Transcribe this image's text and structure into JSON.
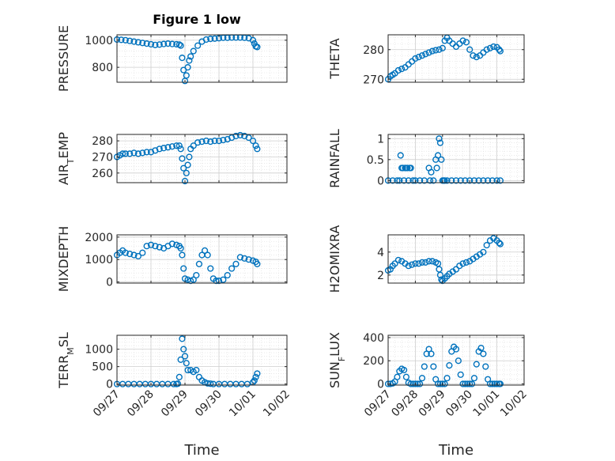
{
  "figure": {
    "marker_color": "#0072BD",
    "axes_color": "#262626",
    "grid": true
  },
  "chart_data": [
    {
      "type": "scatter",
      "title": "Figure 1 low",
      "ylabel": "PRESSURE",
      "xlim": [
        "09/27",
        "10/02"
      ],
      "ylim": [
        690,
        1040
      ],
      "yticks": [
        800,
        1000
      ],
      "xtick_labels_visible": false,
      "x": [
        "09/27 00:00",
        "09/27 03:00",
        "09/27 06:00",
        "09/27 09:00",
        "09/27 12:00",
        "09/27 15:00",
        "09/27 18:00",
        "09/27 21:00",
        "09/28 00:00",
        "09/28 03:00",
        "09/28 06:00",
        "09/28 09:00",
        "09/28 12:00",
        "09/28 15:00",
        "09/28 18:00",
        "09/28 20:00",
        "09/28 21:00",
        "09/28 22:00",
        "09/28 23:00",
        "09/29 00:00",
        "09/29 01:00",
        "09/29 02:00",
        "09/29 03:00",
        "09/29 04:00",
        "09/29 06:00",
        "09/29 09:00",
        "09/29 12:00",
        "09/29 15:00",
        "09/29 18:00",
        "09/29 21:00",
        "09/30 00:00",
        "09/30 03:00",
        "09/30 06:00",
        "09/30 09:00",
        "09/30 12:00",
        "09/30 15:00",
        "09/30 18:00",
        "09/30 21:00",
        "10/01 00:00",
        "10/01 01:00",
        "10/01 02:00",
        "10/01 03:00"
      ],
      "y": [
        1005,
        1003,
        1000,
        995,
        990,
        985,
        980,
        975,
        970,
        965,
        968,
        972,
        975,
        972,
        970,
        968,
        960,
        870,
        780,
        700,
        740,
        800,
        850,
        880,
        920,
        960,
        990,
        1005,
        1010,
        1012,
        1015,
        1018,
        1018,
        1020,
        1020,
        1020,
        1018,
        1015,
        1000,
        975,
        955,
        950
      ]
    },
    {
      "type": "scatter",
      "ylabel": "THETA",
      "xlim": [
        "09/27",
        "10/02"
      ],
      "ylim": [
        269,
        285
      ],
      "yticks": [
        270,
        280
      ],
      "xtick_labels_visible": false,
      "x": [
        "09/27 00:00",
        "09/27 02:00",
        "09/27 04:00",
        "09/27 06:00",
        "09/27 09:00",
        "09/27 12:00",
        "09/27 15:00",
        "09/27 18:00",
        "09/27 21:00",
        "09/28 00:00",
        "09/28 03:00",
        "09/28 06:00",
        "09/28 09:00",
        "09/28 12:00",
        "09/28 15:00",
        "09/28 18:00",
        "09/28 21:00",
        "09/29 00:00",
        "09/29 02:00",
        "09/29 04:00",
        "09/29 06:00",
        "09/29 09:00",
        "09/29 12:00",
        "09/29 15:00",
        "09/29 18:00",
        "09/29 21:00",
        "09/30 00:00",
        "09/30 03:00",
        "09/30 06:00",
        "09/30 09:00",
        "09/30 12:00",
        "09/30 15:00",
        "09/30 18:00",
        "09/30 21:00",
        "10/01 00:00",
        "10/01 02:00",
        "10/01 03:00"
      ],
      "y": [
        270,
        271,
        271.5,
        272,
        273,
        273.5,
        274,
        275,
        276,
        277,
        277.5,
        278,
        278.5,
        279,
        279.5,
        279.8,
        280,
        280.5,
        283,
        284,
        283,
        282,
        281,
        282,
        283,
        282.5,
        280,
        278,
        277.5,
        278,
        279,
        280,
        280.5,
        281,
        280.8,
        280,
        279.5
      ]
    },
    {
      "type": "scatter",
      "ylabel": "AIR_TEMP",
      "ylabel_parts": [
        "AIR",
        "T",
        "EMP"
      ],
      "xlim": [
        "09/27",
        "10/02"
      ],
      "ylim": [
        254,
        284
      ],
      "yticks": [
        260,
        270,
        280
      ],
      "xtick_labels_visible": false,
      "x": [
        "09/27 00:00",
        "09/27 02:00",
        "09/27 04:00",
        "09/27 06:00",
        "09/27 09:00",
        "09/27 12:00",
        "09/27 15:00",
        "09/27 18:00",
        "09/27 21:00",
        "09/28 00:00",
        "09/28 03:00",
        "09/28 06:00",
        "09/28 09:00",
        "09/28 12:00",
        "09/28 15:00",
        "09/28 18:00",
        "09/28 20:00",
        "09/28 21:00",
        "09/28 22:00",
        "09/28 23:00",
        "09/29 00:00",
        "09/29 01:00",
        "09/29 02:00",
        "09/29 03:00",
        "09/29 04:00",
        "09/29 06:00",
        "09/29 09:00",
        "09/29 12:00",
        "09/29 15:00",
        "09/29 18:00",
        "09/29 21:00",
        "09/30 00:00",
        "09/30 03:00",
        "09/30 06:00",
        "09/30 09:00",
        "09/30 12:00",
        "09/30 15:00",
        "09/30 18:00",
        "09/30 21:00",
        "10/01 00:00",
        "10/01 02:00",
        "10/01 03:00"
      ],
      "y": [
        270,
        271,
        272,
        272,
        272,
        272.5,
        272,
        272.5,
        273,
        273,
        274,
        275,
        275.5,
        276,
        276.5,
        277,
        277,
        275,
        269,
        263,
        255,
        260,
        265,
        270,
        275,
        277,
        279,
        279.5,
        280,
        279.5,
        280,
        280,
        280.5,
        281,
        282,
        283,
        283.5,
        283,
        282,
        280,
        277,
        275
      ]
    },
    {
      "type": "scatter",
      "ylabel": "RAINFALL",
      "xlim": [
        "09/27",
        "10/02"
      ],
      "ylim": [
        -0.05,
        1.1
      ],
      "yticks": [
        0,
        0.5,
        1
      ],
      "ytick_labels": [
        "0",
        "0.5",
        "1"
      ],
      "xtick_labels_visible": false,
      "x": [
        "09/27 00:00",
        "09/27 04:00",
        "09/27 08:00",
        "09/27 10:00",
        "09/27 11:00",
        "09/27 12:00",
        "09/27 13:00",
        "09/27 14:00",
        "09/27 15:00",
        "09/27 16:00",
        "09/27 17:00",
        "09/27 18:00",
        "09/27 19:00",
        "09/27 20:00",
        "09/27 22:00",
        "09/28 00:00",
        "09/28 04:00",
        "09/28 08:00",
        "09/28 12:00",
        "09/28 13:00",
        "09/28 14:00",
        "09/28 16:00",
        "09/28 18:00",
        "09/28 19:00",
        "09/28 20:00",
        "09/28 21:00",
        "09/28 22:00",
        "09/28 23:00",
        "09/29 00:00",
        "09/29 01:00",
        "09/29 02:00",
        "09/29 04:00",
        "09/29 08:00",
        "09/29 12:00",
        "09/29 16:00",
        "09/29 20:00",
        "09/30 00:00",
        "09/30 04:00",
        "09/30 08:00",
        "09/30 12:00",
        "09/30 16:00",
        "09/30 20:00",
        "10/01 00:00",
        "10/01 03:00"
      ],
      "y": [
        0,
        0,
        0,
        0,
        0.6,
        0.3,
        0.3,
        0,
        0.3,
        0.3,
        0.3,
        0,
        0.3,
        0.3,
        0,
        0,
        0,
        0,
        0.3,
        0,
        0.2,
        0,
        0.5,
        0.3,
        0.6,
        1,
        0.9,
        0.5,
        0,
        0,
        0,
        0,
        0,
        0,
        0,
        0,
        0,
        0,
        0,
        0,
        0,
        0,
        0,
        0
      ]
    },
    {
      "type": "scatter",
      "ylabel": "MIXDEPTH",
      "xlim": [
        "09/27",
        "10/02"
      ],
      "ylim": [
        -50,
        2100
      ],
      "yticks": [
        0,
        1000,
        2000
      ],
      "xtick_labels_visible": false,
      "x": [
        "09/27 00:00",
        "09/27 02:00",
        "09/27 04:00",
        "09/27 06:00",
        "09/27 09:00",
        "09/27 12:00",
        "09/27 15:00",
        "09/27 18:00",
        "09/27 21:00",
        "09/28 00:00",
        "09/28 03:00",
        "09/28 06:00",
        "09/28 09:00",
        "09/28 12:00",
        "09/28 15:00",
        "09/28 18:00",
        "09/28 20:00",
        "09/28 21:00",
        "09/28 22:00",
        "09/28 23:00",
        "09/29 00:00",
        "09/29 02:00",
        "09/29 04:00",
        "09/29 06:00",
        "09/29 08:00",
        "09/29 10:00",
        "09/29 12:00",
        "09/29 14:00",
        "09/29 16:00",
        "09/29 18:00",
        "09/29 20:00",
        "09/29 22:00",
        "09/30 00:00",
        "09/30 03:00",
        "09/30 06:00",
        "09/30 09:00",
        "09/30 12:00",
        "09/30 15:00",
        "09/30 18:00",
        "09/30 21:00",
        "10/01 00:00",
        "10/01 02:00",
        "10/01 03:00"
      ],
      "y": [
        1200,
        1300,
        1400,
        1300,
        1250,
        1200,
        1150,
        1300,
        1600,
        1650,
        1600,
        1550,
        1500,
        1600,
        1700,
        1650,
        1600,
        1500,
        1200,
        600,
        150,
        100,
        50,
        100,
        300,
        800,
        1200,
        1400,
        1200,
        600,
        150,
        50,
        50,
        100,
        300,
        600,
        800,
        1100,
        1050,
        1000,
        950,
        900,
        800
      ]
    },
    {
      "type": "scatter",
      "ylabel": "H2OMIXRA",
      "xlim": [
        "09/27",
        "10/02"
      ],
      "ylim": [
        1.3,
        5.5
      ],
      "yticks": [
        2,
        4
      ],
      "xtick_labels_visible": false,
      "x": [
        "09/27 00:00",
        "09/27 02:00",
        "09/27 04:00",
        "09/27 06:00",
        "09/27 09:00",
        "09/27 12:00",
        "09/27 15:00",
        "09/27 18:00",
        "09/27 21:00",
        "09/28 00:00",
        "09/28 03:00",
        "09/28 06:00",
        "09/28 09:00",
        "09/28 12:00",
        "09/28 15:00",
        "09/28 18:00",
        "09/28 20:00",
        "09/28 21:00",
        "09/28 22:00",
        "09/28 23:00",
        "09/29 00:00",
        "09/29 02:00",
        "09/29 04:00",
        "09/29 06:00",
        "09/29 09:00",
        "09/29 12:00",
        "09/29 15:00",
        "09/29 18:00",
        "09/29 21:00",
        "09/30 00:00",
        "09/30 03:00",
        "09/30 06:00",
        "09/30 09:00",
        "09/30 12:00",
        "09/30 15:00",
        "09/30 18:00",
        "09/30 21:00",
        "10/01 00:00",
        "10/01 02:00",
        "10/01 03:00"
      ],
      "y": [
        2.4,
        2.5,
        2.8,
        3.0,
        3.3,
        3.2,
        3.0,
        2.8,
        2.9,
        3.0,
        3.0,
        3.1,
        3.1,
        3.2,
        3.2,
        3.1,
        3.0,
        2.5,
        2.0,
        1.6,
        1.5,
        1.7,
        1.9,
        2.1,
        2.3,
        2.5,
        2.8,
        3.0,
        3.1,
        3.2,
        3.4,
        3.6,
        3.8,
        4.0,
        4.6,
        5.0,
        5.2,
        5.0,
        4.8,
        4.7
      ]
    },
    {
      "type": "scatter",
      "ylabel": "TERR_MSL",
      "ylabel_parts": [
        "TERR",
        "M",
        "SL"
      ],
      "xlabel": "Time",
      "xlim": [
        "09/27",
        "10/02"
      ],
      "ylim": [
        -30,
        1400
      ],
      "yticks": [
        0,
        500,
        1000
      ],
      "xtick_labels": [
        "09/27",
        "09/28",
        "09/29",
        "09/30",
        "10/01",
        "10/02"
      ],
      "x": [
        "09/27 00:00",
        "09/27 04:00",
        "09/27 08:00",
        "09/27 12:00",
        "09/27 16:00",
        "09/27 20:00",
        "09/28 00:00",
        "09/28 04:00",
        "09/28 08:00",
        "09/28 12:00",
        "09/28 16:00",
        "09/28 18:00",
        "09/28 19:00",
        "09/28 20:00",
        "09/28 21:00",
        "09/28 22:00",
        "09/28 23:00",
        "09/29 00:00",
        "09/29 01:00",
        "09/29 02:00",
        "09/29 04:00",
        "09/29 06:00",
        "09/29 08:00",
        "09/29 10:00",
        "09/29 12:00",
        "09/29 14:00",
        "09/29 16:00",
        "09/29 18:00",
        "09/29 20:00",
        "09/30 00:00",
        "09/30 04:00",
        "09/30 08:00",
        "09/30 12:00",
        "09/30 16:00",
        "09/30 20:00",
        "10/01 00:00",
        "10/01 01:00",
        "10/01 02:00",
        "10/01 03:00"
      ],
      "y": [
        0,
        0,
        0,
        0,
        0,
        0,
        0,
        0,
        0,
        0,
        0,
        0,
        10,
        200,
        700,
        1300,
        1000,
        800,
        600,
        400,
        400,
        350,
        400,
        200,
        100,
        50,
        20,
        10,
        0,
        0,
        0,
        0,
        0,
        0,
        0,
        50,
        100,
        200,
        300
      ]
    },
    {
      "type": "scatter",
      "ylabel": "SUN_FLUX",
      "ylabel_parts": [
        "SUN",
        "F",
        "LUX"
      ],
      "xlabel": "Time",
      "xlim": [
        "09/27",
        "10/02"
      ],
      "ylim": [
        -10,
        420
      ],
      "yticks": [
        0,
        200,
        400
      ],
      "xtick_labels": [
        "09/27",
        "09/28",
        "09/29",
        "09/30",
        "10/01",
        "10/02"
      ],
      "x": [
        "09/27 00:00",
        "09/27 02:00",
        "09/27 04:00",
        "09/27 06:00",
        "09/27 08:00",
        "09/27 10:00",
        "09/27 12:00",
        "09/27 14:00",
        "09/27 16:00",
        "09/27 18:00",
        "09/27 20:00",
        "09/27 22:00",
        "09/28 00:00",
        "09/28 02:00",
        "09/28 04:00",
        "09/28 06:00",
        "09/28 08:00",
        "09/28 10:00",
        "09/28 12:00",
        "09/28 14:00",
        "09/28 16:00",
        "09/28 18:00",
        "09/28 20:00",
        "09/28 22:00",
        "09/29 00:00",
        "09/29 02:00",
        "09/29 04:00",
        "09/29 06:00",
        "09/29 08:00",
        "09/29 10:00",
        "09/29 12:00",
        "09/29 14:00",
        "09/29 16:00",
        "09/29 18:00",
        "09/29 20:00",
        "09/29 22:00",
        "09/30 00:00",
        "09/30 02:00",
        "09/30 04:00",
        "09/30 06:00",
        "09/30 08:00",
        "09/30 10:00",
        "09/30 12:00",
        "09/30 14:00",
        "09/30 16:00",
        "09/30 18:00",
        "09/30 20:00",
        "09/30 22:00",
        "10/01 00:00",
        "10/01 02:00",
        "10/01 03:00"
      ],
      "y": [
        0,
        0,
        5,
        20,
        60,
        110,
        130,
        120,
        60,
        10,
        0,
        0,
        0,
        0,
        0,
        50,
        150,
        260,
        300,
        260,
        150,
        40,
        0,
        0,
        0,
        0,
        50,
        160,
        280,
        320,
        300,
        200,
        80,
        0,
        0,
        0,
        0,
        0,
        50,
        170,
        280,
        310,
        260,
        150,
        40,
        0,
        0,
        0,
        0,
        0,
        0
      ]
    }
  ]
}
